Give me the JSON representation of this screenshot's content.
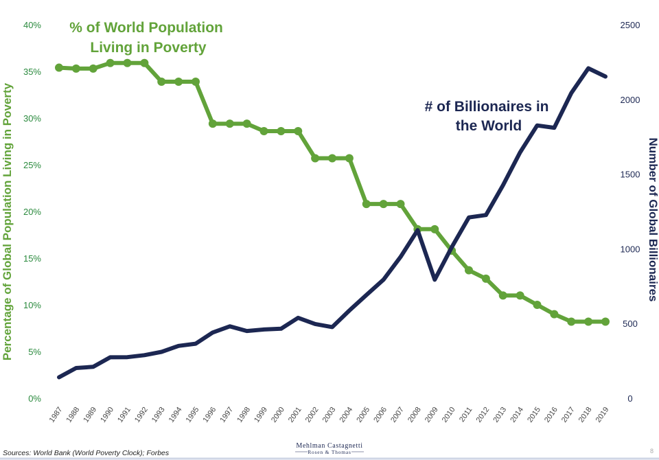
{
  "chart_data": {
    "type": "line",
    "title": "",
    "xlabel": "",
    "ylabel_left": "Percentage of Global Population Living in Poverty",
    "ylabel_right": "Number of Global Billionaires",
    "categories": [
      "1987",
      "1988",
      "1989",
      "1990",
      "1991",
      "1992",
      "1993",
      "1994",
      "1995",
      "1996",
      "1997",
      "1998",
      "1999",
      "2000",
      "2001",
      "2002",
      "2003",
      "2004",
      "2005",
      "2006",
      "2007",
      "2008",
      "2009",
      "2010",
      "2011",
      "2012",
      "2013",
      "2014",
      "2015",
      "2016",
      "2017",
      "2018",
      "2019"
    ],
    "left_axis": {
      "ylim": [
        0,
        40
      ],
      "ticks": [
        0,
        5,
        10,
        15,
        20,
        25,
        30,
        35,
        40
      ],
      "tick_labels": [
        "0%",
        "5%",
        "10%",
        "15%",
        "20%",
        "25%",
        "30%",
        "35%",
        "40%"
      ]
    },
    "right_axis": {
      "ylim": [
        0,
        2500
      ],
      "ticks": [
        0,
        500,
        1000,
        1500,
        2000,
        2500
      ],
      "tick_labels": [
        "0",
        "500",
        "1000",
        "1500",
        "2000",
        "2500"
      ]
    },
    "series": [
      {
        "name": "% of World Population Living in Poverty",
        "axis": "left",
        "color": "#62a33a",
        "markers": true,
        "values": [
          35.4,
          35.3,
          35.3,
          35.9,
          35.9,
          35.9,
          33.9,
          33.9,
          33.9,
          29.4,
          29.4,
          29.4,
          28.6,
          28.6,
          28.6,
          25.7,
          25.7,
          25.7,
          20.8,
          20.8,
          20.8,
          18.1,
          18.1,
          15.8,
          13.7,
          12.8,
          11.0,
          11.0,
          10.0,
          9.0,
          8.2,
          8.2,
          8.2
        ]
      },
      {
        "name": "# of Billionaires in the World",
        "axis": "right",
        "color": "#1c2752",
        "markers": false,
        "values": [
          140,
          202,
          210,
          274,
          275,
          288,
          310,
          350,
          365,
          440,
          481,
          450,
          460,
          465,
          538,
          497,
          476,
          587,
          691,
          793,
          946,
          1125,
          793,
          1011,
          1210,
          1226,
          1426,
          1645,
          1826,
          1810,
          2043,
          2208,
          2153
        ]
      }
    ],
    "annotations": [
      {
        "lines": [
          "% of World Population",
          "Living in Poverty"
        ],
        "color": "#62a33a"
      },
      {
        "lines": [
          "# of Billionaires in",
          "the World"
        ],
        "color": "#1c2752"
      }
    ]
  },
  "footer": {
    "source": "Sources: World Bank (World Poverty Clock); Forbes",
    "logo_line1": "Mehlman Castagnetti",
    "logo_line2": "Rosen & Thomas",
    "page_number": "8"
  }
}
